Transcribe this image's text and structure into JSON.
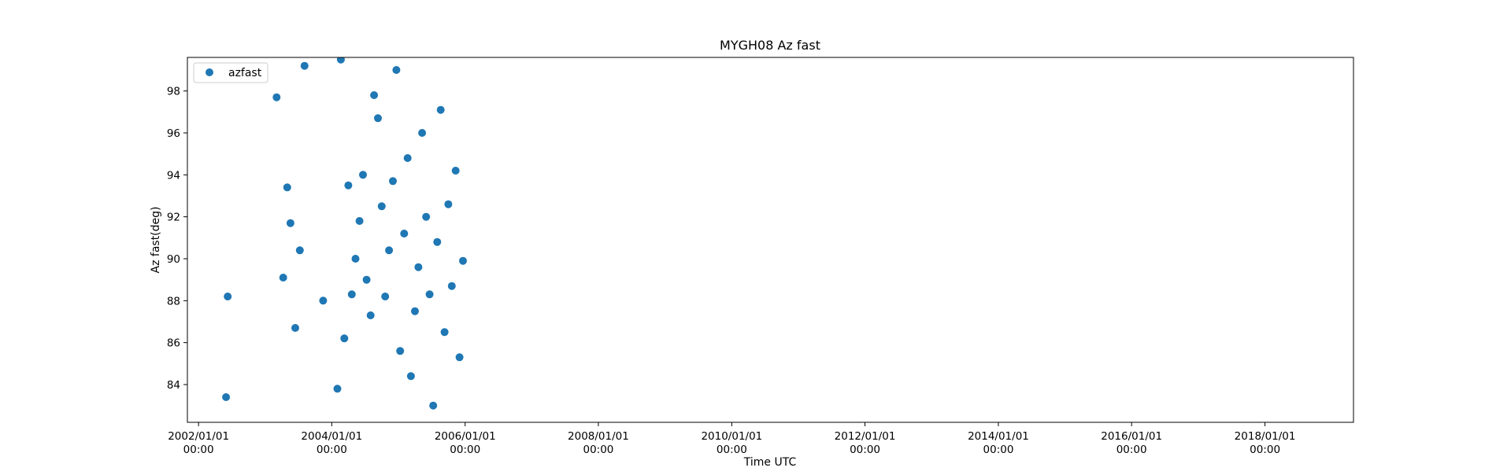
{
  "chart_data": {
    "type": "scatter",
    "title": "MYGH08 Az fast",
    "xlabel": "Time UTC",
    "ylabel": "Az fast(deg)",
    "xlim": [
      "2001/11/01",
      "2019/05/01"
    ],
    "ylim": [
      82.2,
      99.6
    ],
    "x_ticks": [
      {
        "date": "2002/01/01",
        "line1": "2002/01/01",
        "line2": "00:00"
      },
      {
        "date": "2004/01/01",
        "line1": "2004/01/01",
        "line2": "00:00"
      },
      {
        "date": "2006/01/01",
        "line1": "2006/01/01",
        "line2": "00:00"
      },
      {
        "date": "2008/01/01",
        "line1": "2008/01/01",
        "line2": "00:00"
      },
      {
        "date": "2010/01/01",
        "line1": "2010/01/01",
        "line2": "00:00"
      },
      {
        "date": "2012/01/01",
        "line1": "2012/01/01",
        "line2": "00:00"
      },
      {
        "date": "2014/01/01",
        "line1": "2014/01/01",
        "line2": "00:00"
      },
      {
        "date": "2016/01/01",
        "line1": "2016/01/01",
        "line2": "00:00"
      },
      {
        "date": "2018/01/01",
        "line1": "2018/01/01",
        "line2": "00:00"
      }
    ],
    "y_ticks": [
      84,
      86,
      88,
      90,
      92,
      94,
      96,
      98
    ],
    "grid": false,
    "legend": {
      "position": "top-left",
      "entries": [
        "azfast"
      ]
    },
    "series": [
      {
        "name": "azfast",
        "color": "#1f77b4",
        "marker": "circle",
        "points": [
          [
            "2002/06/01",
            83.4
          ],
          [
            "2002/06/10",
            88.2
          ],
          [
            "2003/03/05",
            97.7
          ],
          [
            "2003/04/10",
            89.1
          ],
          [
            "2003/05/02",
            93.4
          ],
          [
            "2003/05/20",
            91.7
          ],
          [
            "2003/06/15",
            86.7
          ],
          [
            "2003/07/10",
            90.4
          ],
          [
            "2003/08/05",
            99.2
          ],
          [
            "2003/11/15",
            88.0
          ],
          [
            "2004/02/01",
            83.8
          ],
          [
            "2004/02/20",
            99.5
          ],
          [
            "2004/03/10",
            86.2
          ],
          [
            "2004/04/01",
            93.5
          ],
          [
            "2004/04/20",
            88.3
          ],
          [
            "2004/05/10",
            90.0
          ],
          [
            "2004/06/01",
            91.8
          ],
          [
            "2004/06/20",
            94.0
          ],
          [
            "2004/07/10",
            89.0
          ],
          [
            "2004/08/01",
            87.3
          ],
          [
            "2004/08/20",
            97.8
          ],
          [
            "2004/09/10",
            96.7
          ],
          [
            "2004/10/01",
            92.5
          ],
          [
            "2004/10/20",
            88.2
          ],
          [
            "2004/11/10",
            90.4
          ],
          [
            "2004/12/01",
            93.7
          ],
          [
            "2004/12/20",
            99.0
          ],
          [
            "2005/01/10",
            85.6
          ],
          [
            "2005/02/01",
            91.2
          ],
          [
            "2005/02/20",
            94.8
          ],
          [
            "2005/03/10",
            84.4
          ],
          [
            "2005/04/01",
            87.5
          ],
          [
            "2005/04/20",
            89.6
          ],
          [
            "2005/05/10",
            96.0
          ],
          [
            "2005/06/01",
            92.0
          ],
          [
            "2005/06/20",
            88.3
          ],
          [
            "2005/07/10",
            83.0
          ],
          [
            "2005/08/01",
            90.8
          ],
          [
            "2005/08/20",
            97.1
          ],
          [
            "2005/09/10",
            86.5
          ],
          [
            "2005/10/01",
            92.6
          ],
          [
            "2005/10/20",
            88.7
          ],
          [
            "2005/11/10",
            94.2
          ],
          [
            "2005/12/01",
            85.3
          ],
          [
            "2005/12/20",
            89.9
          ]
        ]
      }
    ]
  }
}
